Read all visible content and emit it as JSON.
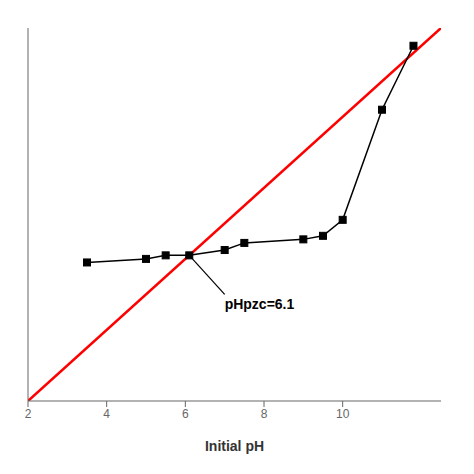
{
  "chart_data": {
    "type": "line",
    "xlabel": "Initial pH",
    "xlim": [
      2,
      12.5
    ],
    "ylim": [
      2,
      12.5
    ],
    "xticks": [
      2,
      4,
      6,
      8,
      10
    ],
    "tick_labels": "x",
    "grid": false,
    "series": [
      {
        "color": "red",
        "x": [
          2,
          12.5
        ],
        "values": [
          2,
          12.5
        ]
      },
      {
        "color": "black",
        "marker": "square",
        "x": [
          3.5,
          5.0,
          5.5,
          6.1,
          7.0,
          7.5,
          9.0,
          9.5,
          10.0,
          11.0,
          11.8
        ],
        "values": [
          5.9,
          6.0,
          6.1,
          6.1,
          6.25,
          6.45,
          6.55,
          6.65,
          7.1,
          10.2,
          12.0
        ]
      }
    ],
    "annotations": [
      {
        "text": "pHpzc=6.1",
        "xy": [
          6.1,
          6.1
        ],
        "xytext": [
          7.0,
          5.0
        ]
      }
    ]
  }
}
